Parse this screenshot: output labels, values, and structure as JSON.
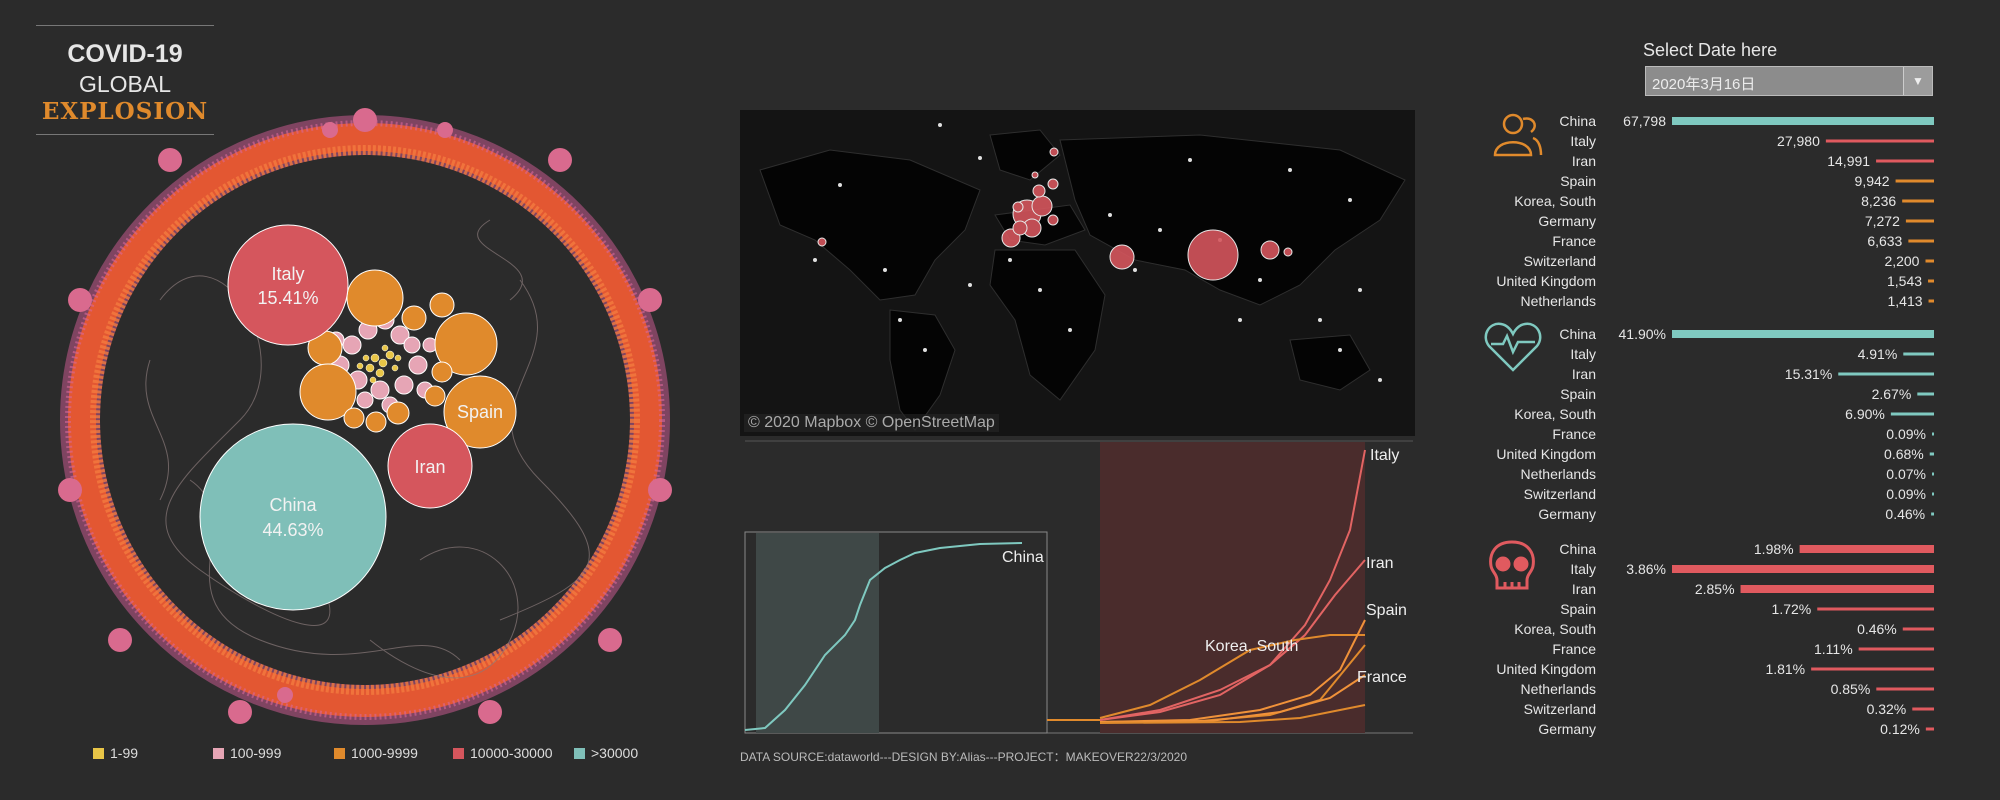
{
  "header": {
    "title_line1": "COVID-19",
    "title_line2": "GLOBAL",
    "title_line3": "EXPLOSION"
  },
  "colors": {
    "bin_1_99": "#e8c547",
    "bin_100_999": "#e6a5b5",
    "bin_1000_9999": "#e08a2c",
    "bin_10000_30000": "#d5565d",
    "bin_30000_plus": "#7fbfb8",
    "death_bar": "#e05a5f",
    "rate_bar": "#7fc9c0",
    "case_bar_top": "#7fc9c0",
    "background": "#2b2b2b"
  },
  "bubble_chart": {
    "labels": [
      {
        "name": "Italy",
        "value": "15.41%"
      },
      {
        "name": "Spain",
        "value": ""
      },
      {
        "name": "Iran",
        "value": ""
      },
      {
        "name": "China",
        "value": "44.63%"
      }
    ],
    "legend": [
      {
        "label": "1-99"
      },
      {
        "label": "100-999"
      },
      {
        "label": "1000-9999"
      },
      {
        "label": "10000-30000"
      },
      {
        "label": ">30000"
      }
    ]
  },
  "map": {
    "attribution": "© 2020 Mapbox © OpenStreetMap"
  },
  "line_chart": {
    "labels": [
      "China",
      "Italy",
      "Iran",
      "Spain",
      "Korea, South",
      "France"
    ]
  },
  "footer": {
    "text": "DATA SOURCE:dataworld---DESIGN BY:Alias---PROJECT：MAKEOVER22/3/2020"
  },
  "date_selector": {
    "label": "Select Date here",
    "value": "2020年3月16日"
  },
  "chart_data": [
    {
      "type": "bar",
      "metric": "confirmed cases",
      "categories": [
        "China",
        "Italy",
        "Iran",
        "Spain",
        "Korea, South",
        "Germany",
        "France",
        "Switzerland",
        "United Kingdom",
        "Netherlands"
      ],
      "values": [
        67798,
        27980,
        14991,
        9942,
        8236,
        7272,
        6633,
        2200,
        1543,
        1413
      ],
      "labels": [
        "67,798",
        "27,980",
        "14,991",
        "9,942",
        "8,236",
        "7,272",
        "6,633",
        "2,200",
        "1,543",
        "1,413"
      ]
    },
    {
      "type": "bar",
      "metric": "recovery rate",
      "categories": [
        "China",
        "Italy",
        "Iran",
        "Spain",
        "Korea, South",
        "France",
        "United Kingdom",
        "Netherlands",
        "Switzerland",
        "Germany"
      ],
      "values": [
        41.9,
        4.91,
        15.31,
        2.67,
        6.9,
        0.09,
        0.68,
        0.07,
        0.09,
        0.46
      ],
      "labels": [
        "41.90%",
        "4.91%",
        "15.31%",
        "2.67%",
        "6.90%",
        "0.09%",
        "0.68%",
        "0.07%",
        "0.09%",
        "0.46%"
      ]
    },
    {
      "type": "bar",
      "metric": "death rate",
      "categories": [
        "China",
        "Italy",
        "Iran",
        "Spain",
        "Korea, South",
        "France",
        "United Kingdom",
        "Netherlands",
        "Switzerland",
        "Germany"
      ],
      "values": [
        1.98,
        3.86,
        2.85,
        1.72,
        0.46,
        1.11,
        1.81,
        0.85,
        0.32,
        0.12
      ],
      "labels": [
        "1.98%",
        "3.86%",
        "2.85%",
        "1.72%",
        "0.46%",
        "1.11%",
        "1.81%",
        "0.85%",
        "0.32%",
        "0.12%"
      ]
    }
  ]
}
